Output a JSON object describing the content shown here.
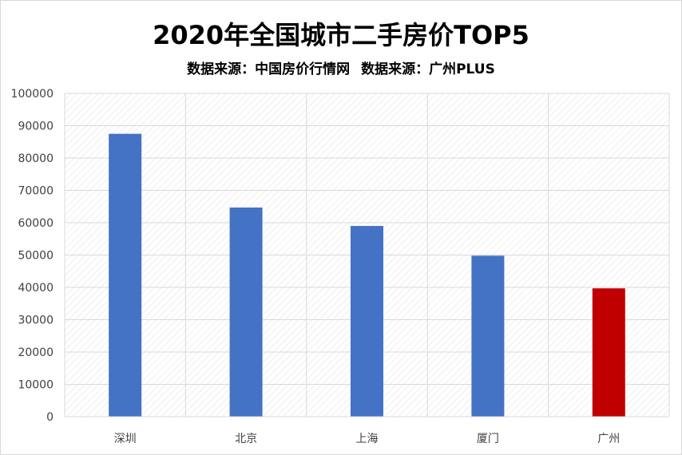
{
  "chart_data": {
    "type": "bar",
    "title": "2020年全国城市二手房价TOP5",
    "subtitle_parts": [
      "数据来源：中国房价行情网",
      "数据来源：广州PLUS"
    ],
    "categories": [
      "深圳",
      "北京",
      "上海",
      "厦门",
      "广州"
    ],
    "values": [
      87500,
      64700,
      59000,
      49800,
      39700
    ],
    "bar_colors": [
      "#4472c4",
      "#4472c4",
      "#4472c4",
      "#4472c4",
      "#c00000"
    ],
    "ylim": [
      0,
      100000
    ],
    "yticks": [
      "0",
      "10000",
      "20000",
      "30000",
      "40000",
      "50000",
      "60000",
      "70000",
      "80000",
      "90000",
      "100000"
    ],
    "grid": true,
    "plot_background": "hatched-light-gray",
    "gridline_color": "#d9d9d9"
  }
}
